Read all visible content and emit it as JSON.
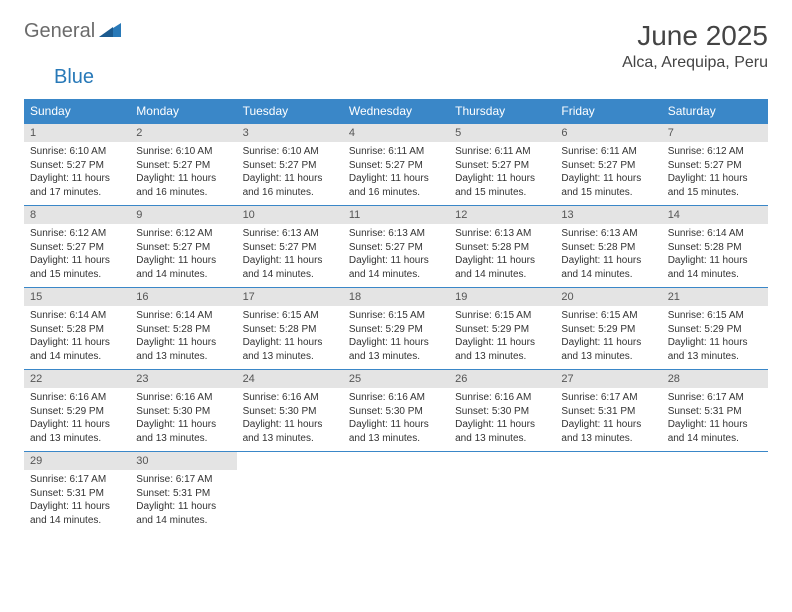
{
  "logo": {
    "text1": "General",
    "text2": "Blue"
  },
  "title": "June 2025",
  "location": "Alca, Arequipa, Peru",
  "colors": {
    "header_bg": "#3a87c8",
    "header_text": "#ffffff",
    "daynum_bg": "#e4e4e4",
    "daynum_text": "#555555",
    "body_text": "#333333",
    "logo_gray": "#6b6b6b",
    "logo_blue": "#2879b8",
    "border": "#3a87c8"
  },
  "day_names": [
    "Sunday",
    "Monday",
    "Tuesday",
    "Wednesday",
    "Thursday",
    "Friday",
    "Saturday"
  ],
  "weeks": [
    [
      {
        "num": "1",
        "sunrise": "Sunrise: 6:10 AM",
        "sunset": "Sunset: 5:27 PM",
        "daylight": "Daylight: 11 hours and 17 minutes."
      },
      {
        "num": "2",
        "sunrise": "Sunrise: 6:10 AM",
        "sunset": "Sunset: 5:27 PM",
        "daylight": "Daylight: 11 hours and 16 minutes."
      },
      {
        "num": "3",
        "sunrise": "Sunrise: 6:10 AM",
        "sunset": "Sunset: 5:27 PM",
        "daylight": "Daylight: 11 hours and 16 minutes."
      },
      {
        "num": "4",
        "sunrise": "Sunrise: 6:11 AM",
        "sunset": "Sunset: 5:27 PM",
        "daylight": "Daylight: 11 hours and 16 minutes."
      },
      {
        "num": "5",
        "sunrise": "Sunrise: 6:11 AM",
        "sunset": "Sunset: 5:27 PM",
        "daylight": "Daylight: 11 hours and 15 minutes."
      },
      {
        "num": "6",
        "sunrise": "Sunrise: 6:11 AM",
        "sunset": "Sunset: 5:27 PM",
        "daylight": "Daylight: 11 hours and 15 minutes."
      },
      {
        "num": "7",
        "sunrise": "Sunrise: 6:12 AM",
        "sunset": "Sunset: 5:27 PM",
        "daylight": "Daylight: 11 hours and 15 minutes."
      }
    ],
    [
      {
        "num": "8",
        "sunrise": "Sunrise: 6:12 AM",
        "sunset": "Sunset: 5:27 PM",
        "daylight": "Daylight: 11 hours and 15 minutes."
      },
      {
        "num": "9",
        "sunrise": "Sunrise: 6:12 AM",
        "sunset": "Sunset: 5:27 PM",
        "daylight": "Daylight: 11 hours and 14 minutes."
      },
      {
        "num": "10",
        "sunrise": "Sunrise: 6:13 AM",
        "sunset": "Sunset: 5:27 PM",
        "daylight": "Daylight: 11 hours and 14 minutes."
      },
      {
        "num": "11",
        "sunrise": "Sunrise: 6:13 AM",
        "sunset": "Sunset: 5:27 PM",
        "daylight": "Daylight: 11 hours and 14 minutes."
      },
      {
        "num": "12",
        "sunrise": "Sunrise: 6:13 AM",
        "sunset": "Sunset: 5:28 PM",
        "daylight": "Daylight: 11 hours and 14 minutes."
      },
      {
        "num": "13",
        "sunrise": "Sunrise: 6:13 AM",
        "sunset": "Sunset: 5:28 PM",
        "daylight": "Daylight: 11 hours and 14 minutes."
      },
      {
        "num": "14",
        "sunrise": "Sunrise: 6:14 AM",
        "sunset": "Sunset: 5:28 PM",
        "daylight": "Daylight: 11 hours and 14 minutes."
      }
    ],
    [
      {
        "num": "15",
        "sunrise": "Sunrise: 6:14 AM",
        "sunset": "Sunset: 5:28 PM",
        "daylight": "Daylight: 11 hours and 14 minutes."
      },
      {
        "num": "16",
        "sunrise": "Sunrise: 6:14 AM",
        "sunset": "Sunset: 5:28 PM",
        "daylight": "Daylight: 11 hours and 13 minutes."
      },
      {
        "num": "17",
        "sunrise": "Sunrise: 6:15 AM",
        "sunset": "Sunset: 5:28 PM",
        "daylight": "Daylight: 11 hours and 13 minutes."
      },
      {
        "num": "18",
        "sunrise": "Sunrise: 6:15 AM",
        "sunset": "Sunset: 5:29 PM",
        "daylight": "Daylight: 11 hours and 13 minutes."
      },
      {
        "num": "19",
        "sunrise": "Sunrise: 6:15 AM",
        "sunset": "Sunset: 5:29 PM",
        "daylight": "Daylight: 11 hours and 13 minutes."
      },
      {
        "num": "20",
        "sunrise": "Sunrise: 6:15 AM",
        "sunset": "Sunset: 5:29 PM",
        "daylight": "Daylight: 11 hours and 13 minutes."
      },
      {
        "num": "21",
        "sunrise": "Sunrise: 6:15 AM",
        "sunset": "Sunset: 5:29 PM",
        "daylight": "Daylight: 11 hours and 13 minutes."
      }
    ],
    [
      {
        "num": "22",
        "sunrise": "Sunrise: 6:16 AM",
        "sunset": "Sunset: 5:29 PM",
        "daylight": "Daylight: 11 hours and 13 minutes."
      },
      {
        "num": "23",
        "sunrise": "Sunrise: 6:16 AM",
        "sunset": "Sunset: 5:30 PM",
        "daylight": "Daylight: 11 hours and 13 minutes."
      },
      {
        "num": "24",
        "sunrise": "Sunrise: 6:16 AM",
        "sunset": "Sunset: 5:30 PM",
        "daylight": "Daylight: 11 hours and 13 minutes."
      },
      {
        "num": "25",
        "sunrise": "Sunrise: 6:16 AM",
        "sunset": "Sunset: 5:30 PM",
        "daylight": "Daylight: 11 hours and 13 minutes."
      },
      {
        "num": "26",
        "sunrise": "Sunrise: 6:16 AM",
        "sunset": "Sunset: 5:30 PM",
        "daylight": "Daylight: 11 hours and 13 minutes."
      },
      {
        "num": "27",
        "sunrise": "Sunrise: 6:17 AM",
        "sunset": "Sunset: 5:31 PM",
        "daylight": "Daylight: 11 hours and 13 minutes."
      },
      {
        "num": "28",
        "sunrise": "Sunrise: 6:17 AM",
        "sunset": "Sunset: 5:31 PM",
        "daylight": "Daylight: 11 hours and 14 minutes."
      }
    ],
    [
      {
        "num": "29",
        "sunrise": "Sunrise: 6:17 AM",
        "sunset": "Sunset: 5:31 PM",
        "daylight": "Daylight: 11 hours and 14 minutes."
      },
      {
        "num": "30",
        "sunrise": "Sunrise: 6:17 AM",
        "sunset": "Sunset: 5:31 PM",
        "daylight": "Daylight: 11 hours and 14 minutes."
      },
      null,
      null,
      null,
      null,
      null
    ]
  ]
}
